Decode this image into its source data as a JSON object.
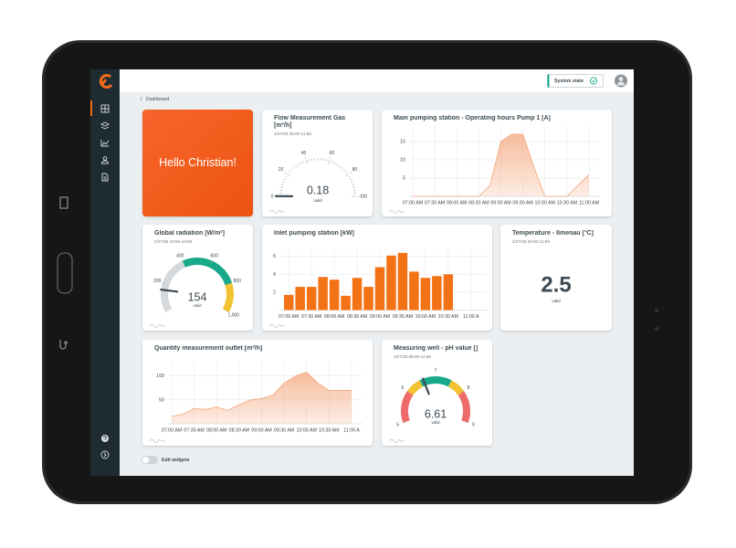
{
  "header": {
    "system_state": "System state"
  },
  "breadcrumb": "Dashboard",
  "greeting": "Hello Christian!",
  "chart_data": [
    {
      "type": "gauge",
      "title": "Flow Measurement Gas [m³/h]",
      "subtitle": "2/27/25 08:00-11:59",
      "value": 0.18,
      "status": "valid",
      "ylim": [
        0,
        100
      ],
      "yticks": [
        0,
        20,
        40,
        60,
        80,
        100
      ],
      "color": "#3d4a52"
    },
    {
      "type": "area",
      "title": "Main pumping station - Operating hours Pump 1 [A]",
      "categories": [
        "07:00 AM",
        null,
        "07:30 AM",
        null,
        "08:00 AM",
        null,
        "08:30 AM",
        null,
        "09:00 AM",
        null,
        "09:30 AM",
        null,
        "10:00 AM",
        null,
        "10:30 AM",
        null,
        "11:00 AM"
      ],
      "values": [
        0,
        0,
        0,
        0,
        0,
        0,
        0,
        3,
        15,
        17,
        17,
        8,
        0,
        0,
        0,
        3,
        6
      ],
      "ylim": [
        0,
        19
      ],
      "yticks": [
        5,
        10,
        15
      ],
      "color": "#f4a57a",
      "grid": true
    },
    {
      "type": "gauge",
      "title": "Global radiation [W/m²]",
      "subtitle": "2/27/25 10:58-10:58",
      "value": 154,
      "status": "valid",
      "ylim": [
        0,
        1000
      ],
      "yticks": [
        200,
        400,
        600,
        800,
        {
          "value": 1000,
          "label": "1,000"
        }
      ],
      "color": "#3d4a52",
      "bands": [
        {
          "from": 0,
          "to": 400,
          "color": "#d5d9dc"
        },
        {
          "from": 400,
          "to": 800,
          "color": "#17a98a"
        },
        {
          "from": 800,
          "to": 1000,
          "color": "#f1c232"
        }
      ]
    },
    {
      "type": "bar",
      "title": "Inlet pumping station [kW]",
      "categories": [
        "07:00 AM",
        null,
        "07:30 AM",
        null,
        "08:00 AM",
        null,
        "08:30 AM",
        null,
        "09:00 AM",
        null,
        "09:30 AM",
        null,
        "10:00 AM",
        null,
        "10:30 AM",
        null,
        "11:00 A"
      ],
      "values": [
        1.7,
        2.6,
        2.6,
        3.7,
        3.4,
        1.6,
        3.6,
        2.6,
        4.8,
        6.1,
        6.4,
        4.3,
        3.6,
        3.8,
        4.0,
        null,
        null
      ],
      "ylim": [
        0,
        7
      ],
      "yticks": [
        2,
        4,
        6
      ],
      "color": "#f47216",
      "grid": true
    },
    {
      "type": "kpi",
      "title": "Temperature - Ilmenau [°C]",
      "subtitle": "2/27/25 00:00-11:59",
      "value": 2.5,
      "status": "valid"
    },
    {
      "type": "area",
      "title": "Quantity measurement outlet [m³/h]",
      "categories": [
        "07:00 AM",
        null,
        "07:30 AM",
        null,
        "08:00 AM",
        null,
        "08:30 AM",
        null,
        "09:00 AM",
        null,
        "09:30 AM",
        null,
        "10:00 AM",
        null,
        "10:30 AM",
        null,
        "11:00 A"
      ],
      "values": [
        15,
        20,
        32,
        30,
        35,
        28,
        40,
        50,
        53,
        60,
        85,
        100,
        108,
        85,
        70,
        70,
        70
      ],
      "ylim": [
        0,
        130
      ],
      "yticks": [
        50,
        100
      ],
      "color": "#f4a57a",
      "grid": true
    },
    {
      "type": "gauge",
      "title": "Measuring well - pH value []",
      "subtitle": "2/27/25 08:00-11:59",
      "value": 6.61,
      "status": "valid",
      "ylim": [
        5,
        9
      ],
      "yticks": [
        5,
        6,
        7,
        8,
        9
      ],
      "color": "#3d4a52",
      "bands": [
        {
          "from": 5,
          "to": 6,
          "color": "#ef6b6b"
        },
        {
          "from": 6,
          "to": 6.5,
          "color": "#f1c232"
        },
        {
          "from": 6.5,
          "to": 7.5,
          "color": "#17a98a"
        },
        {
          "from": 7.5,
          "to": 8,
          "color": "#f1c232"
        },
        {
          "from": 8,
          "to": 9,
          "color": "#ef6b6b"
        }
      ]
    }
  ],
  "footer": {
    "edit_widgets": "Edit widgets"
  }
}
